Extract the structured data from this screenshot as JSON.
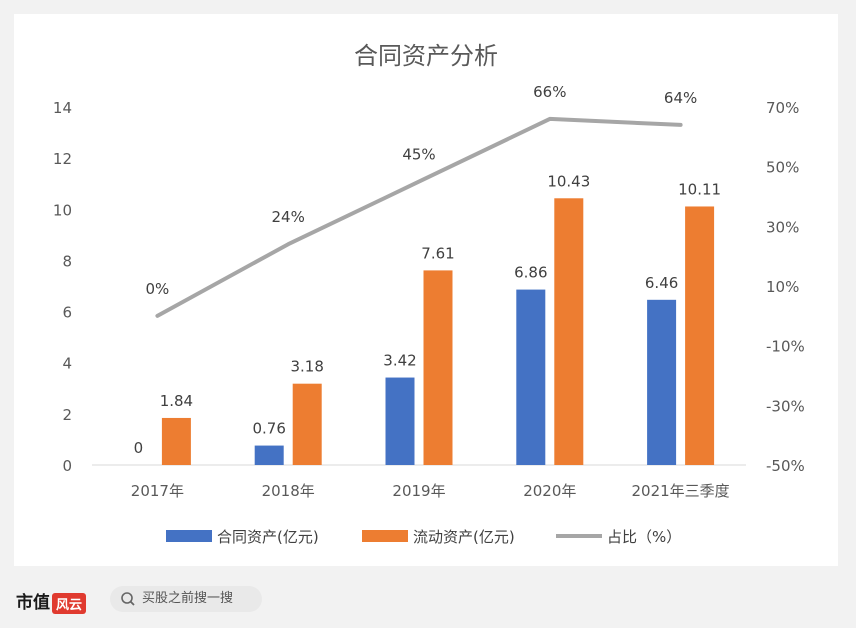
{
  "chart_data": {
    "type": "bar",
    "title": "合同资产分析",
    "categories": [
      "2017年",
      "2018年",
      "2019年",
      "2020年",
      "2021年三季度"
    ],
    "series": [
      {
        "name": "合同资产(亿元)",
        "type": "bar",
        "axis": "left",
        "color": "#4472c4",
        "values": [
          0,
          0.76,
          3.42,
          6.86,
          6.46
        ],
        "labels": [
          "0",
          "0.76",
          "3.42",
          "6.86",
          "6.46"
        ]
      },
      {
        "name": "流动资产(亿元)",
        "type": "bar",
        "axis": "left",
        "color": "#ed7d31",
        "values": [
          1.84,
          3.18,
          7.61,
          10.43,
          10.11
        ],
        "labels": [
          "1.84",
          "3.18",
          "7.61",
          "10.43",
          "10.11"
        ]
      },
      {
        "name": "占比（%）",
        "type": "line",
        "axis": "right",
        "color": "#a6a6a6",
        "values": [
          0,
          24,
          45,
          66,
          64
        ],
        "labels": [
          "0%",
          "24%",
          "45%",
          "66%",
          "64%"
        ]
      }
    ],
    "y_left": {
      "min": 0,
      "max": 14,
      "ticks": [
        "0",
        "2",
        "4",
        "6",
        "8",
        "10",
        "12",
        "14"
      ]
    },
    "y_right": {
      "min": -50,
      "max": 70,
      "ticks": [
        "-50%",
        "-30%",
        "-10%",
        "10%",
        "30%",
        "50%",
        "70%"
      ]
    },
    "legend_position": "bottom"
  },
  "footer": {
    "brand": "市值",
    "brand_logo": "风云",
    "search_placeholder": "买股之前搜一搜"
  }
}
